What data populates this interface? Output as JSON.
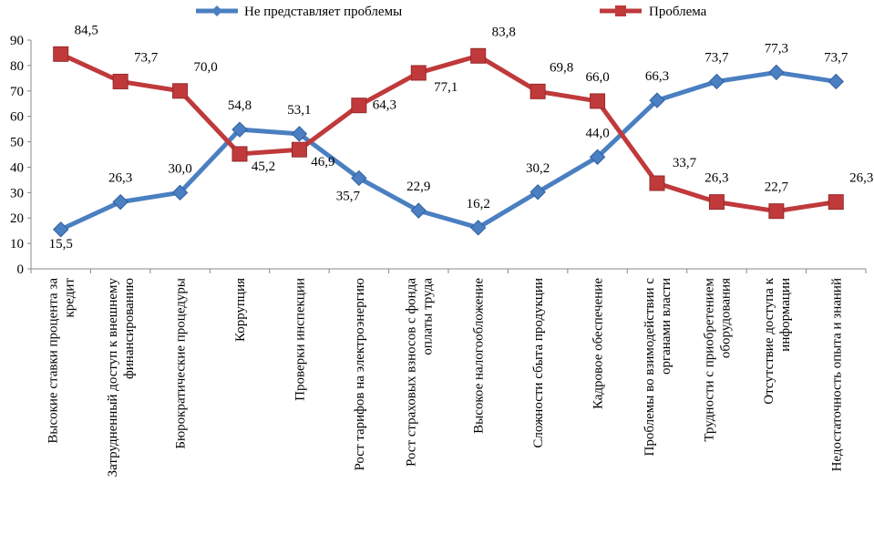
{
  "chart_data": {
    "type": "line",
    "categories": [
      "Высокие ставки процента за кредит",
      "Затрудненный доступ к внешнему финансированию",
      "Бюрократические процедуры",
      "Коррупция",
      "Проверки инспекции",
      "Рост тарифов на электроэнергию",
      "Рост страховых взносов с фонда оплаты труда",
      "Высокое налогообложение",
      "Сложности сбыта продукции",
      "Кадровое обеспечение",
      "Проблемы во взимодействии с органами власти",
      "Трудности с приобретением оборудования",
      "Отсутствие доступа к информации",
      "Недостаточность опыта и знаний"
    ],
    "category_lines": [
      [
        "Высокие ставки процента за",
        "кредит"
      ],
      [
        "Затрудненный доступ к внешнему",
        "финансированию"
      ],
      [
        "Бюрократические процедуры"
      ],
      [
        "Коррупция"
      ],
      [
        "Проверки инспекции"
      ],
      [
        "Рост тарифов на электроэнергию"
      ],
      [
        "Рост страховых взносов с фонда",
        "оплаты труда"
      ],
      [
        "Высокое налогообложение"
      ],
      [
        "Сложности сбыта продукции"
      ],
      [
        "Кадровое обеспечение"
      ],
      [
        "Проблемы во взимодействии с",
        "органами власти"
      ],
      [
        "Трудности с приобретением",
        "оборудования"
      ],
      [
        "Отсутствие доступа к",
        "информации"
      ],
      [
        "Недостаточность опыта и знаний"
      ]
    ],
    "series": [
      {
        "name": "Не представляет проблемы",
        "color": "#4a7fc1",
        "marker": "diamond",
        "values": [
          15.5,
          26.3,
          30.0,
          54.8,
          53.1,
          35.7,
          22.9,
          16.2,
          30.2,
          44.0,
          66.3,
          73.7,
          77.3,
          73.7
        ],
        "labels": [
          "15,5",
          "26,3",
          "30,0",
          "54,8",
          "53,1",
          "35,7",
          "22,9",
          "16,2",
          "30,2",
          "44,0",
          "66,3",
          "73,7",
          "77,3",
          "73,7"
        ]
      },
      {
        "name": "Проблема",
        "color": "#c0393b",
        "marker": "square",
        "values": [
          84.5,
          73.7,
          70.0,
          45.2,
          46.9,
          64.3,
          77.1,
          83.8,
          69.8,
          66.0,
          33.7,
          26.3,
          22.7,
          26.3
        ],
        "labels": [
          "84,5",
          "73,7",
          "70,0",
          "45,2",
          "46,9",
          "64,3",
          "77,1",
          "83,8",
          "69,8",
          "66,0",
          "33,7",
          "26,3",
          "22,7",
          "26,3"
        ]
      }
    ],
    "yticks": [
      "0",
      "10",
      "20",
      "30",
      "40",
      "50",
      "60",
      "70",
      "80",
      "90"
    ],
    "ylim": [
      0,
      90
    ],
    "grid": false,
    "legend_position": "top"
  }
}
